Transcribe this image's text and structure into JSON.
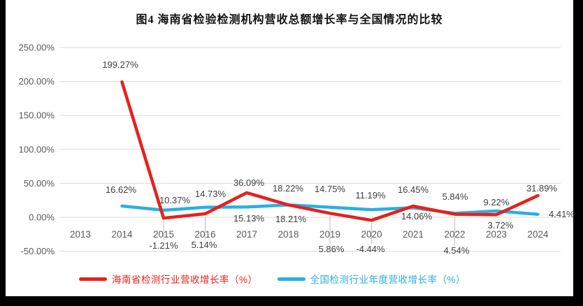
{
  "page": {
    "frame_color": "#000000",
    "canvas_color": "#ffffff"
  },
  "title": "图4  海南省检验检测机构营收总额增长率与全国情况的比较",
  "chart_data": {
    "type": "line",
    "title": "图4  海南省检验检测机构营收总额增长率与全国情况的比较",
    "categories": [
      2013,
      2014,
      2015,
      2016,
      2017,
      2018,
      2019,
      2020,
      2021,
      2022,
      2023,
      2024
    ],
    "series": [
      {
        "id": "hainan",
        "name": "海南省检测行业营收增长率（%）",
        "color": "#e8201a",
        "x": [
          2014,
          2015,
          2016,
          2017,
          2018,
          2019,
          2020,
          2021,
          2022,
          2023,
          2024
        ],
        "values": [
          199.27,
          -1.21,
          5.14,
          36.09,
          18.22,
          5.86,
          -4.44,
          16.45,
          4.54,
          3.72,
          31.89
        ]
      },
      {
        "id": "national",
        "name": "全国检测行业年度营收增长率（%）",
        "color": "#29b0e3",
        "x": [
          2014,
          2015,
          2016,
          2017,
          2018,
          2019,
          2020,
          2021,
          2022,
          2023,
          2024
        ],
        "values": [
          16.62,
          10.37,
          14.73,
          15.13,
          18.21,
          14.75,
          11.19,
          14.06,
          5.84,
          9.22,
          4.41
        ]
      }
    ],
    "yaxis": {
      "min": -50,
      "max": 250,
      "step": 50,
      "tick_labels": [
        "250.00%",
        "200.00%",
        "150.00%",
        "100.00%",
        "50.00%",
        "0.00%",
        "-50.00%"
      ],
      "tick_values": [
        250,
        200,
        150,
        100,
        50,
        0,
        -50
      ]
    },
    "xlabel": "",
    "ylabel": "",
    "grid": true,
    "legend_position": "bottom",
    "label_color": "#404040",
    "axis_text_color": "#595959",
    "gridline_color": "#d9d9d9",
    "leader_line_color": "#bfbfbf"
  }
}
